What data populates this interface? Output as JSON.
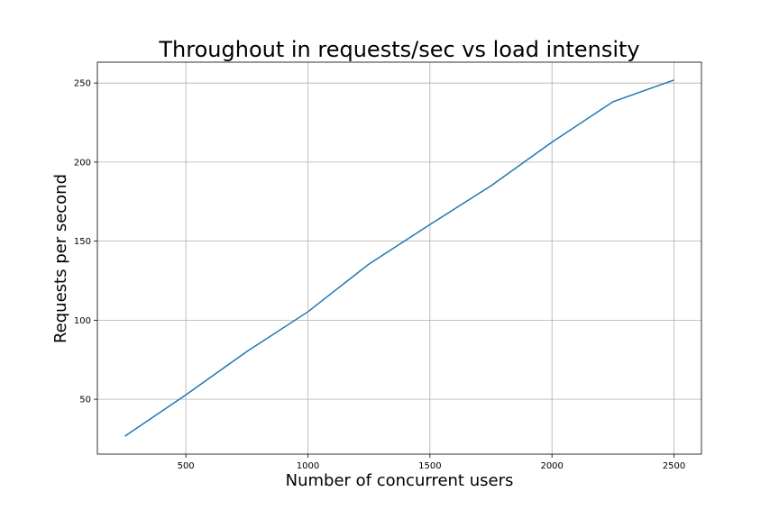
{
  "chart_data": {
    "type": "line",
    "title": "Throughout in requests/sec vs load intensity",
    "xlabel": "Number of concurrent users",
    "ylabel": "Requests per second",
    "x": [
      250,
      500,
      750,
      1000,
      1250,
      1500,
      1750,
      2000,
      2250,
      2500
    ],
    "series": [
      {
        "color": "#1f77b4",
        "values": [
          26.6,
          52.8,
          80.2,
          105.3,
          135.5,
          160.5,
          185,
          212.6,
          238.2,
          251.9
        ]
      }
    ],
    "xlim": [
      137.5,
      2612.5
    ],
    "xticks": [
      500,
      1000,
      1500,
      2000,
      2500
    ],
    "ylim": [
      15.3,
      263.2
    ],
    "yticks": [
      50,
      100,
      150,
      200,
      250
    ],
    "grid": true
  }
}
